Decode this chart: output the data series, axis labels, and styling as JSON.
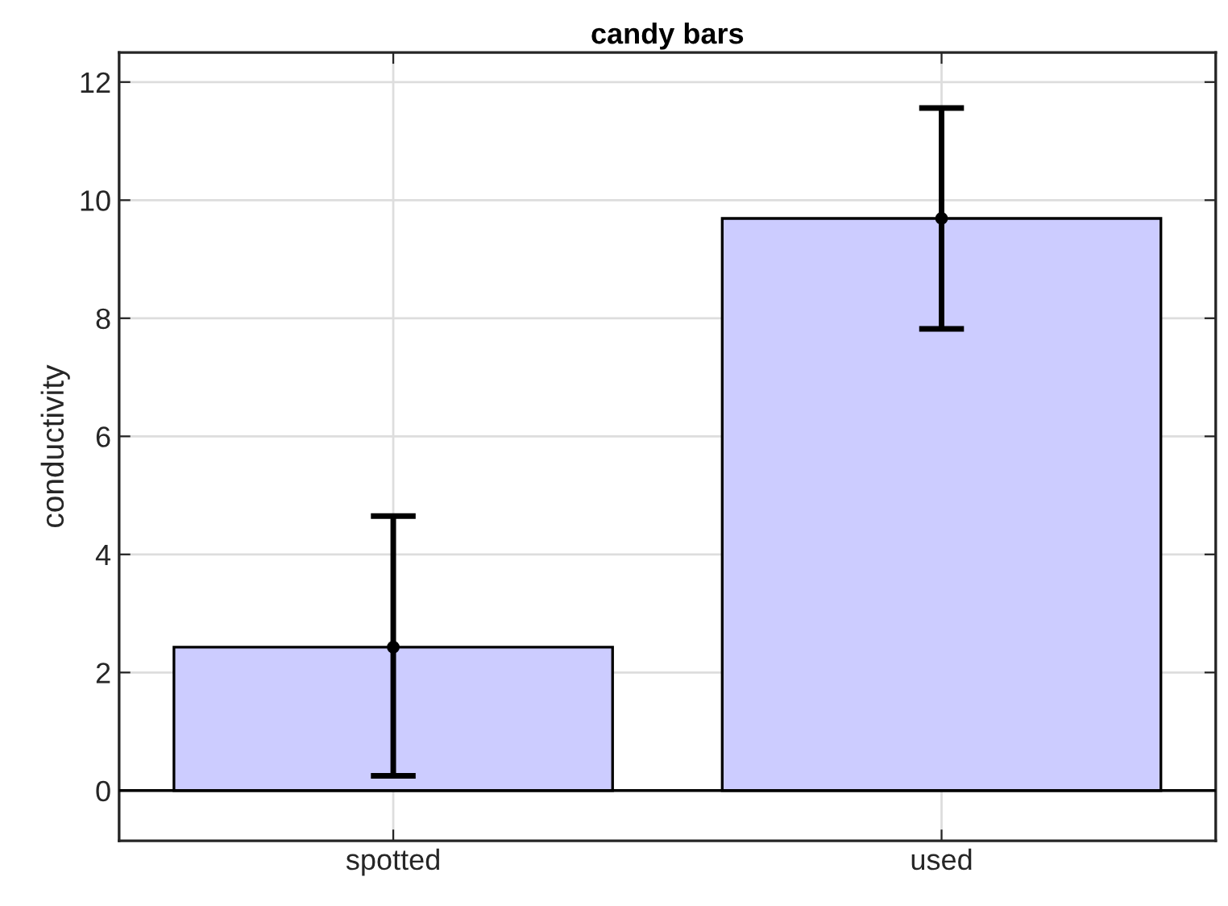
{
  "chart_data": {
    "type": "bar",
    "title": "candy bars",
    "ylabel": "conductivity",
    "categories": [
      "spotted",
      "used"
    ],
    "series": [
      {
        "color": "#ccccff",
        "values": [
          2.43,
          9.69
        ],
        "errors": [
          [
            0.25,
            4.65
          ],
          [
            7.82,
            11.56
          ]
        ]
      },
      {
        "type": "scatter",
        "color": "#000000",
        "marker": "circle",
        "x": [
          "spotted",
          "used"
        ],
        "values": [
          2.43,
          9.69
        ]
      }
    ],
    "ylim": [
      -0.85,
      12.5
    ],
    "yticks": [
      0,
      2,
      4,
      6,
      8,
      10,
      12
    ],
    "ref_lines": [
      {
        "axis": "y",
        "value": 0,
        "color": "#000000"
      }
    ],
    "grid": true
  }
}
